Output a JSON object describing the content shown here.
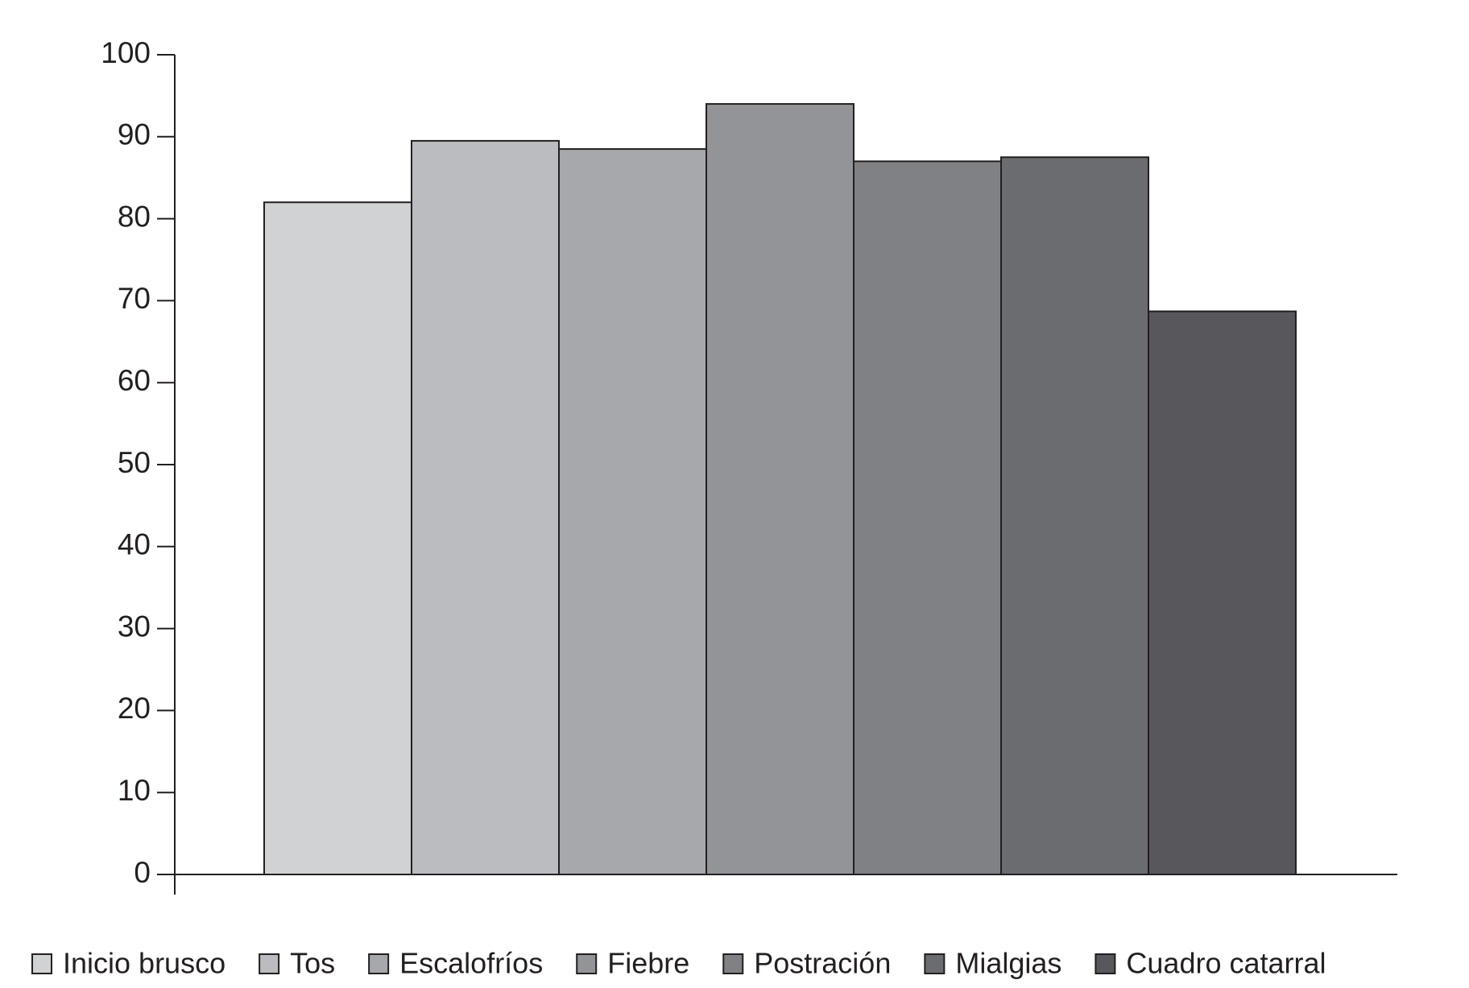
{
  "chart_data": {
    "type": "bar",
    "series": [
      {
        "name": "Inicio brusco",
        "color": "#d1d2d4",
        "values": [
          82
        ]
      },
      {
        "name": "Tos",
        "color": "#bbbcbf",
        "values": [
          89.5
        ]
      },
      {
        "name": "Escalofríos",
        "color": "#a7a8ab",
        "values": [
          88.5
        ]
      },
      {
        "name": "Fiebre",
        "color": "#939498",
        "values": [
          94
        ]
      },
      {
        "name": "Postración",
        "color": "#808185",
        "values": [
          87
        ]
      },
      {
        "name": "Mialgias",
        "color": "#6b6c70",
        "values": [
          87.5
        ]
      },
      {
        "name": "Cuadro catarral",
        "color": "#58575c",
        "values": [
          68.7
        ]
      }
    ],
    "ylim": [
      0,
      100
    ],
    "yticks": [
      0,
      10,
      20,
      30,
      40,
      50,
      60,
      70,
      80,
      90,
      100
    ],
    "grid": false,
    "legend": "bottom"
  }
}
